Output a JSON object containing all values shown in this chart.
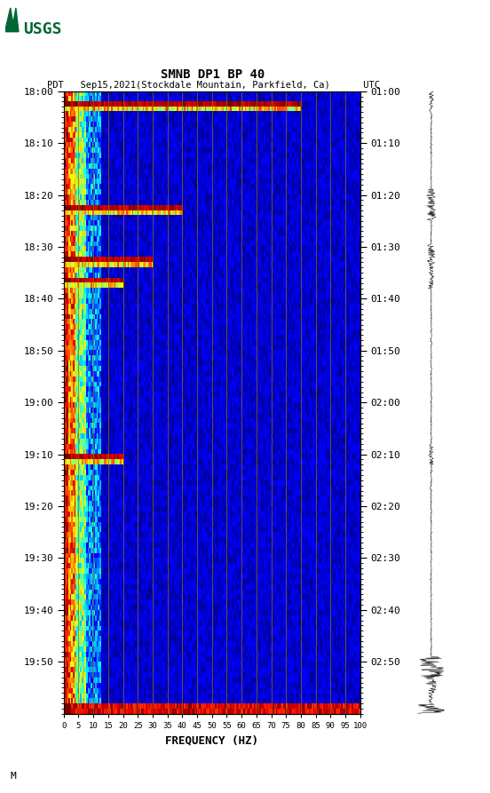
{
  "title_line1": "SMNB DP1 BP 40",
  "title_line2": "PDT   Sep15,2021(Stockdale Mountain, Parkfield, Ca)      UTC",
  "xlabel": "FREQUENCY (HZ)",
  "freq_ticks": [
    0,
    5,
    10,
    15,
    20,
    25,
    30,
    35,
    40,
    45,
    50,
    55,
    60,
    65,
    70,
    75,
    80,
    85,
    90,
    95,
    100
  ],
  "left_time_labels": [
    "18:00",
    "18:10",
    "18:20",
    "18:30",
    "18:40",
    "18:50",
    "19:00",
    "19:10",
    "19:20",
    "19:30",
    "19:40",
    "19:50"
  ],
  "right_time_labels": [
    "01:00",
    "01:10",
    "01:20",
    "01:30",
    "01:40",
    "01:50",
    "02:00",
    "02:10",
    "02:20",
    "02:30",
    "02:40",
    "02:50"
  ],
  "n_time_steps": 120,
  "n_freq_steps": 200,
  "grid_color": "#8B7000",
  "usgs_green": "#006633",
  "event_times": [
    2,
    22,
    32,
    36,
    70,
    118
  ],
  "event_freq_extents": [
    80,
    40,
    30,
    20,
    20,
    100
  ],
  "annotation": "M"
}
